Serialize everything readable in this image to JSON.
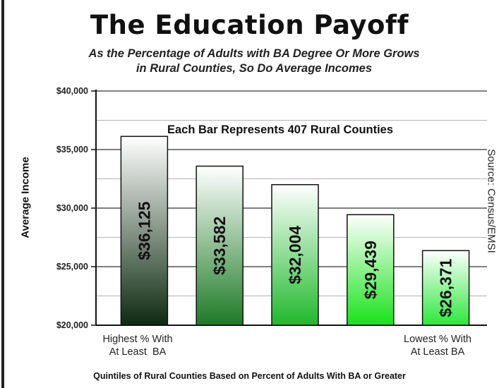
{
  "chart_data": {
    "type": "bar",
    "title": "The Education Payoff",
    "subtitle_lines": [
      "As the Percentage of Adults with BA Degree Or More Grows",
      "in Rural Counties, So Do Average Incomes"
    ],
    "annotation": "Each Bar Represents 407 Rural Counties",
    "ylabel": "Average Income",
    "xlabel": "Quintiles of Rural Counties Based on Percent of Adults With BA or Greater",
    "x_category_labels": {
      "highest": "Highest % With\nAt Least  BA",
      "lowest": "Lowest % With\nAt Least BA"
    },
    "source": "Source: Census/EMSI",
    "ylim": [
      20000,
      40000
    ],
    "yticks": [
      20000,
      25000,
      30000,
      35000,
      40000
    ],
    "ytick_labels": [
      "$20,000",
      "$25,000",
      "$30,000",
      "$35,000",
      "$40,000"
    ],
    "grid": true,
    "values": [
      36125,
      33582,
      32004,
      29439,
      26371
    ],
    "value_labels": [
      "$36,125",
      "$33,582",
      "$32,004",
      "$29,439",
      "$26,371"
    ],
    "colors": {
      "bar_top": "#ffffff",
      "bar_bottoms": [
        "#0d2a10",
        "#1e7a26",
        "#1fb82c",
        "#18e21a",
        "#2be83a"
      ],
      "grid": "#555555",
      "axis": "#111111"
    }
  }
}
